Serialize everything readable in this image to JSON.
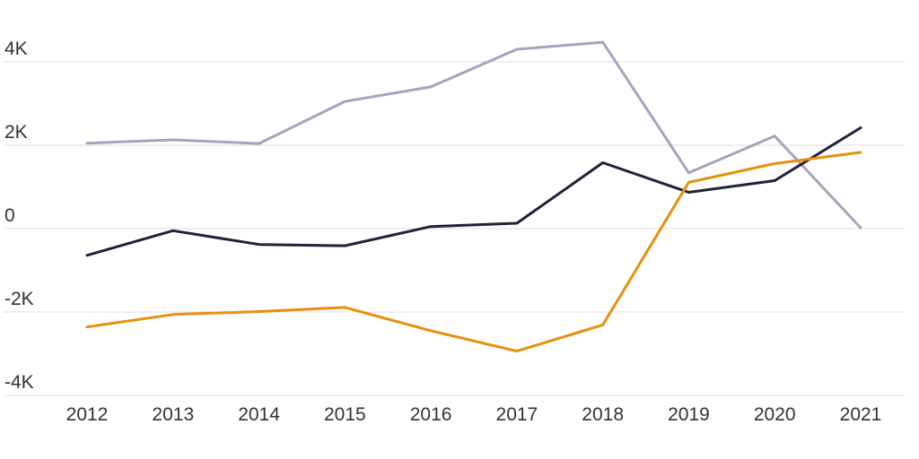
{
  "chart_data": {
    "type": "line",
    "x": [
      "2012",
      "2013",
      "2014",
      "2015",
      "2016",
      "2017",
      "2018",
      "2019",
      "2020",
      "2021"
    ],
    "ylim": [
      -4000,
      4000
    ],
    "yticks": [
      {
        "value": 4000,
        "label": "4K"
      },
      {
        "value": 2000,
        "label": "2K"
      },
      {
        "value": 0,
        "label": "0"
      },
      {
        "value": -2000,
        "label": "-2K"
      },
      {
        "value": -4000,
        "label": "-4K"
      }
    ],
    "grid": true,
    "legend": "none",
    "series": [
      {
        "color": "#a7a3bf",
        "values": [
          2050,
          2130,
          2040,
          3050,
          3400,
          4300,
          4470,
          1340,
          2220,
          20
        ]
      },
      {
        "color": "#23213a",
        "values": [
          -640,
          -50,
          -380,
          -410,
          50,
          130,
          1580,
          870,
          1150,
          2420
        ]
      },
      {
        "color": "#e8900c",
        "values": [
          -2360,
          -2060,
          -1990,
          -1890,
          -2450,
          -2940,
          -2310,
          1110,
          1560,
          1830
        ]
      }
    ]
  }
}
